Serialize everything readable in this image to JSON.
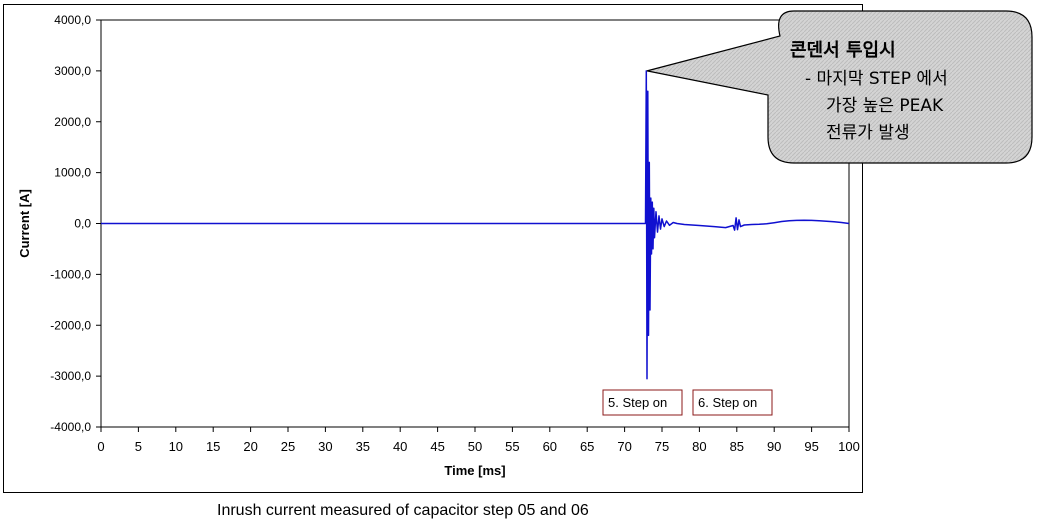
{
  "chart_data": {
    "type": "line",
    "xlabel": "Time [ms]",
    "ylabel": "Current [A]",
    "xlim": [
      0,
      100
    ],
    "ylim": [
      -4000,
      4000
    ],
    "x_ticks": [
      0,
      5,
      10,
      15,
      20,
      25,
      30,
      35,
      40,
      45,
      50,
      55,
      60,
      65,
      70,
      75,
      80,
      85,
      90,
      95,
      100
    ],
    "y_ticks": [
      4000,
      3000,
      2000,
      1000,
      0,
      -1000,
      -2000,
      -3000,
      -4000
    ],
    "y_tick_labels": [
      "4000,0",
      "3000,0",
      "2000,0",
      "1000,0",
      "0,0",
      "-1000,0",
      "-2000,0",
      "-3000,0",
      "-4000,0"
    ],
    "grid": true,
    "line_color": "#1010d0",
    "series": [
      {
        "x": [
          0,
          72.8,
          72.9,
          73.0,
          73.1,
          73.2,
          73.3,
          73.4,
          73.5,
          73.6,
          73.7,
          73.8,
          73.9,
          74.0,
          74.2,
          74.4,
          74.6,
          74.8,
          75.0,
          75.3,
          75.6,
          76.0,
          76.5,
          77.0,
          78.0,
          80.0,
          82.0,
          83.5,
          84.5,
          84.7,
          84.9,
          85.1,
          85.3,
          85.5,
          86.0,
          87.0,
          88.0,
          89.0,
          90.0,
          91.0,
          92.0,
          93.0,
          94.0,
          95.0,
          96.0,
          97.0,
          98.0,
          99.0,
          100.0
        ],
        "y": [
          0,
          0,
          3000,
          -3050,
          2600,
          -2200,
          1200,
          -1700,
          500,
          -600,
          420,
          -500,
          300,
          -280,
          230,
          -170,
          150,
          -110,
          90,
          -60,
          50,
          -35,
          20,
          0,
          -20,
          -40,
          -60,
          -80,
          -40,
          -130,
          110,
          -120,
          70,
          -60,
          -30,
          -20,
          -15,
          -5,
          15,
          40,
          55,
          60,
          65,
          60,
          55,
          45,
          35,
          20,
          0
        ]
      }
    ],
    "annotations": [
      {
        "text": "5. Step on"
      },
      {
        "text": "6. Step on"
      }
    ],
    "callout": {
      "title": "콘덴서 투입시",
      "line1": "- 마지막 STEP 에서",
      "line2": "가장 높은 PEAK",
      "line3": "전류가 발생"
    }
  },
  "caption": "Inrush current measured of capacitor step  05 and 06"
}
